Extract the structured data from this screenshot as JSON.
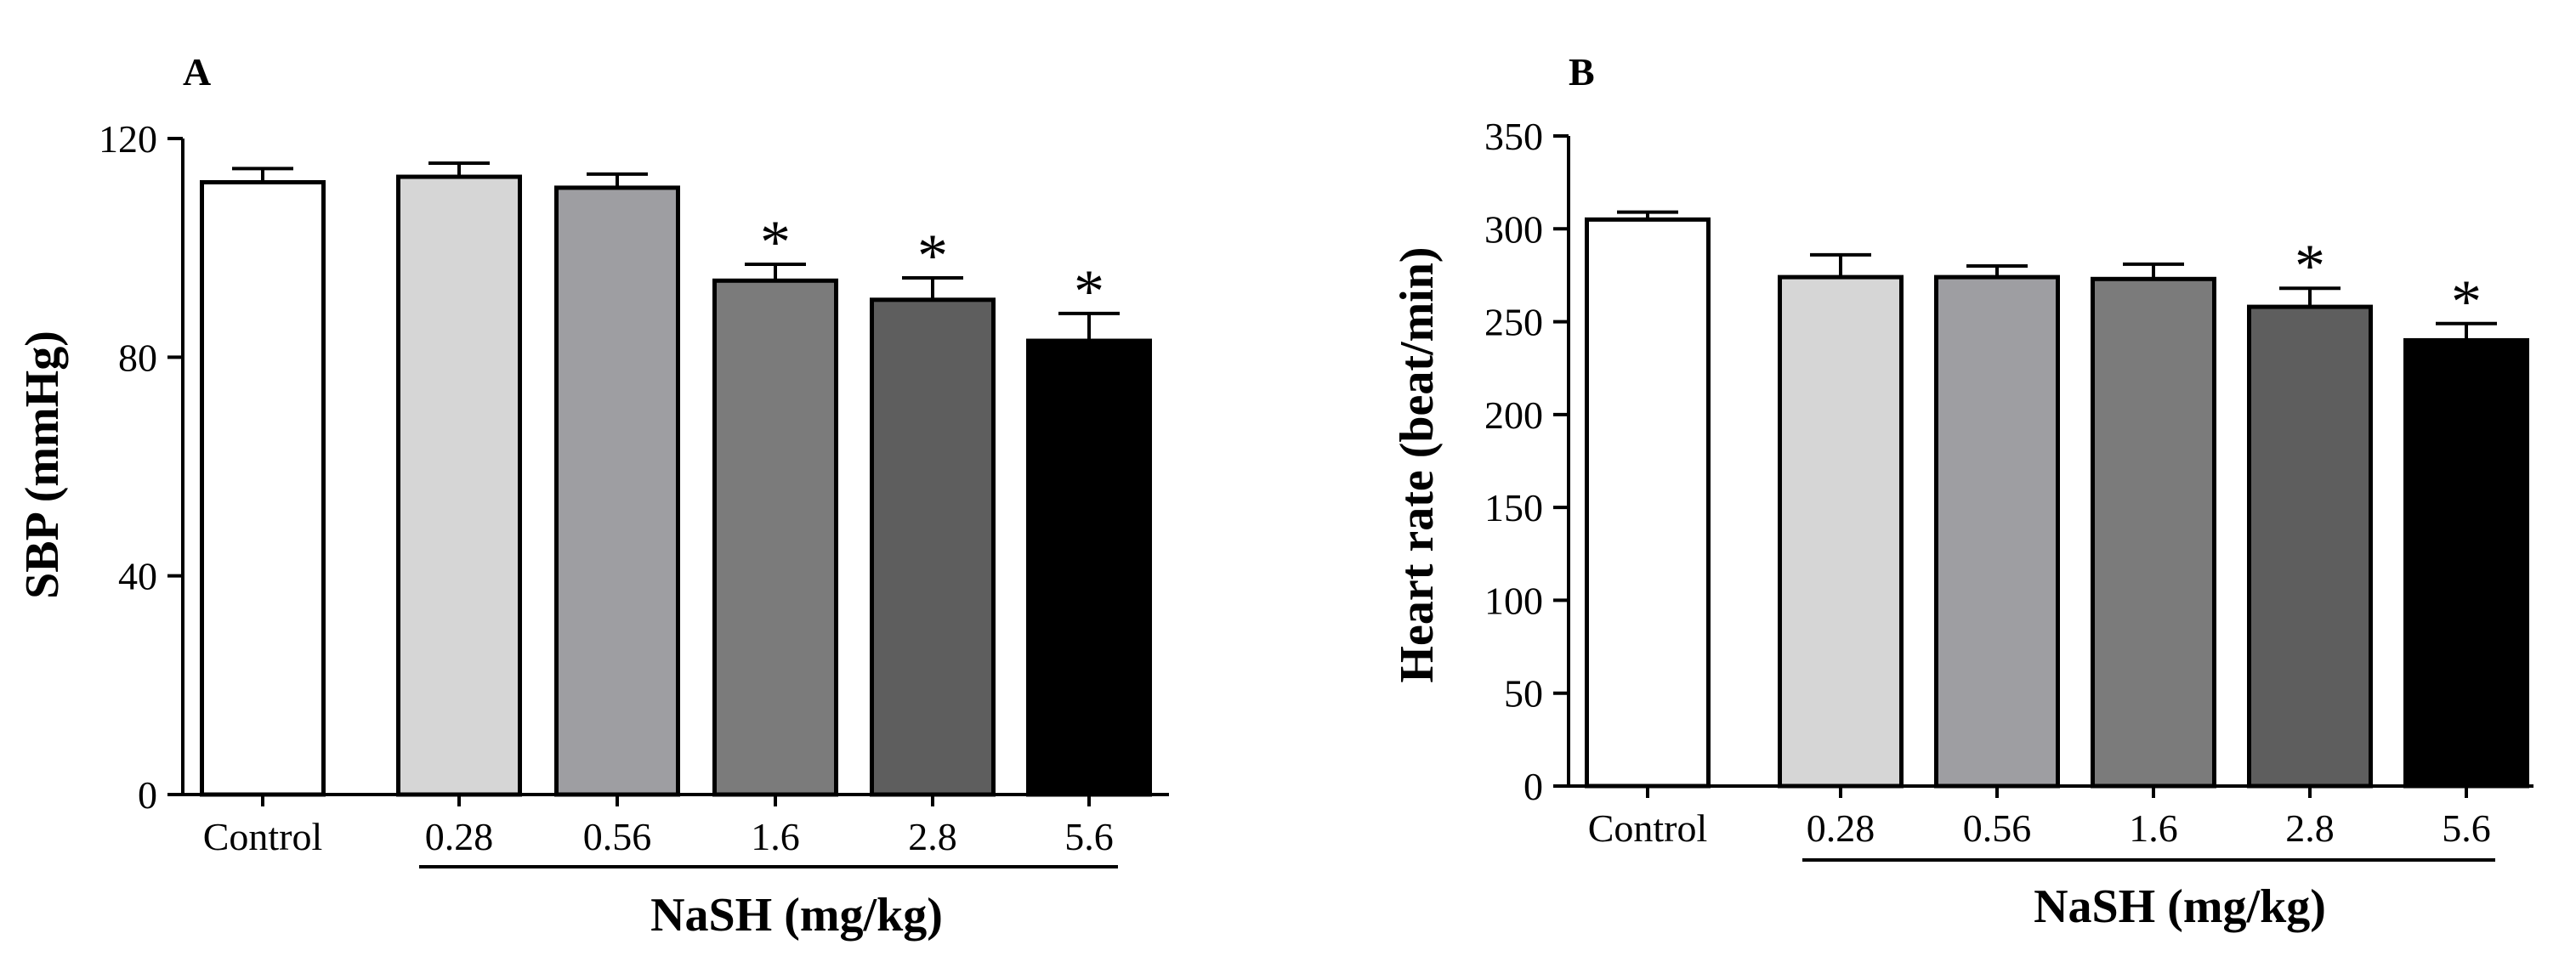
{
  "chart_data": [
    {
      "type": "bar",
      "panel": "A",
      "ylabel": "SBP (mmHg)",
      "group_label": "NaSH (mg/kg)",
      "ylim": [
        0,
        120
      ],
      "yticks": [
        0,
        40,
        80,
        120
      ],
      "categories": [
        "Control",
        "0.28",
        "0.56",
        "1.6",
        "2.8",
        "5.6"
      ],
      "values": [
        112,
        113,
        111,
        94,
        90.5,
        83
      ],
      "errors": [
        2.5,
        2.5,
        2.5,
        3,
        4,
        5
      ],
      "significance": [
        "",
        "",
        "",
        "*",
        "*",
        "*"
      ],
      "colors": [
        "#ffffff",
        "#d6d6d6",
        "#9e9ea2",
        "#7b7b7b",
        "#5e5e5e",
        "#000000"
      ]
    },
    {
      "type": "bar",
      "panel": "B",
      "ylabel": "Heart rate (beat/min)",
      "group_label": "NaSH (mg/kg)",
      "ylim": [
        0,
        350
      ],
      "yticks": [
        0,
        50,
        100,
        150,
        200,
        250,
        300,
        350
      ],
      "categories": [
        "Control",
        "0.28",
        "0.56",
        "1.6",
        "2.8",
        "5.6"
      ],
      "values": [
        305,
        274,
        274,
        273,
        258,
        240
      ],
      "errors": [
        4,
        12,
        6,
        8,
        10,
        9
      ],
      "significance": [
        "",
        "",
        "",
        "",
        "*",
        "*"
      ],
      "colors": [
        "#ffffff",
        "#d6d6d6",
        "#9e9ea2",
        "#7b7b7b",
        "#5e5e5e",
        "#000000"
      ]
    }
  ]
}
